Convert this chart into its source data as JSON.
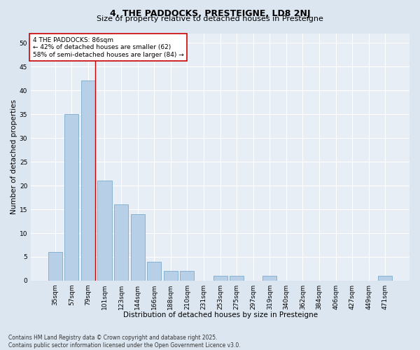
{
  "title1": "4, THE PADDOCKS, PRESTEIGNE, LD8 2NJ",
  "title2": "Size of property relative to detached houses in Presteigne",
  "xlabel": "Distribution of detached houses by size in Presteigne",
  "ylabel": "Number of detached properties",
  "categories": [
    "35sqm",
    "57sqm",
    "79sqm",
    "101sqm",
    "123sqm",
    "144sqm",
    "166sqm",
    "188sqm",
    "210sqm",
    "231sqm",
    "253sqm",
    "275sqm",
    "297sqm",
    "319sqm",
    "340sqm",
    "362sqm",
    "384sqm",
    "406sqm",
    "427sqm",
    "449sqm",
    "471sqm"
  ],
  "values": [
    6,
    35,
    42,
    21,
    16,
    14,
    4,
    2,
    2,
    0,
    1,
    1,
    0,
    1,
    0,
    0,
    0,
    0,
    0,
    0,
    1
  ],
  "bar_color": "#b8cfe8",
  "bar_edge_color": "#7aaacb",
  "red_line_bar_index": 2,
  "annotation_title": "4 THE PADDOCKS: 86sqm",
  "annotation_line2": "← 42% of detached houses are smaller (62)",
  "annotation_line3": "58% of semi-detached houses are larger (84) →",
  "annotation_box_color": "#ffffff",
  "annotation_box_edge": "#cc0000",
  "footer_line1": "Contains HM Land Registry data © Crown copyright and database right 2025.",
  "footer_line2": "Contains public sector information licensed under the Open Government Licence v3.0.",
  "bg_color": "#dce6f0",
  "plot_bg_color": "#e8eef6",
  "grid_color": "#ffffff",
  "ylim": [
    0,
    52
  ],
  "yticks": [
    0,
    5,
    10,
    15,
    20,
    25,
    30,
    35,
    40,
    45,
    50
  ],
  "title1_fontsize": 9,
  "title2_fontsize": 8,
  "xlabel_fontsize": 7.5,
  "ylabel_fontsize": 7.5,
  "tick_fontsize": 6.5,
  "annotation_fontsize": 6.5,
  "footer_fontsize": 5.5
}
